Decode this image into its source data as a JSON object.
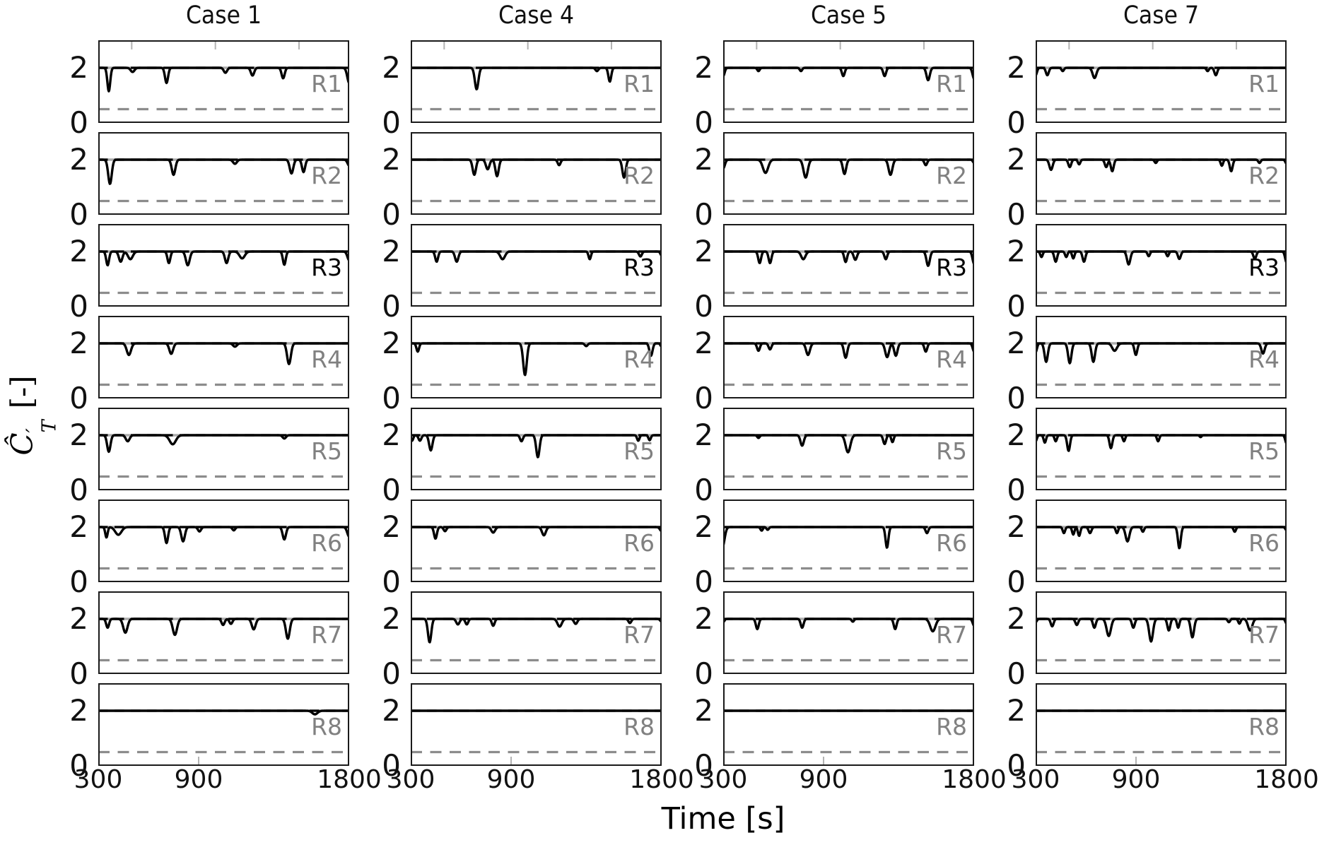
{
  "figure": {
    "xlabel": "Time [s]",
    "ylabel": {
      "base": "Ĉ",
      "prime": "′",
      "subscript": "T",
      "units": "[-]"
    },
    "background": "#ffffff"
  },
  "colors": {
    "data_line": "#000000",
    "axis_border": "#1a1a1a",
    "ref_top_solid_gray": "#acacac",
    "ref_top_dashed_black": "#000000",
    "ref_half_dashed_gray": "#8c8c8c",
    "row_label_default": "#808080",
    "row_label_highlight": "#000000",
    "minor_tick": "#b3b3b3",
    "text": "#000000"
  },
  "chart_data": {
    "type": "line",
    "title": "",
    "description": "4x8 grid of time-series subplots; black curve rides baseline 2 with downward dips; dips encoded as [time_s, depth, sigma_s] so value(t) = 2 - sum(depth*exp(-((t-time)/sigma)^2))",
    "columns": [
      "Case 1",
      "Case 4",
      "Case 5",
      "Case 7"
    ],
    "rows": [
      {
        "label": "R1",
        "color": "#808080"
      },
      {
        "label": "R2",
        "color": "#808080"
      },
      {
        "label": "R3",
        "color": "#000000"
      },
      {
        "label": "R4",
        "color": "#808080"
      },
      {
        "label": "R5",
        "color": "#808080"
      },
      {
        "label": "R6",
        "color": "#808080"
      },
      {
        "label": "R7",
        "color": "#808080"
      },
      {
        "label": "R8",
        "color": "#808080"
      }
    ],
    "x_range": [
      300,
      1800
    ],
    "y_range": [
      0,
      3
    ],
    "baseline": 2.0,
    "x_tick_values": [
      300,
      900,
      1800
    ],
    "x_tick_labels": [
      "300",
      "900",
      "1800"
    ],
    "y_tick_values": [
      2,
      0
    ],
    "y_tick_labels": [
      "2",
      "0"
    ],
    "top_minor_ticks": [
      500,
      1000,
      1500
    ],
    "bottom_minor_ticks": [
      900
    ],
    "reference_lines": [
      {
        "y": 2.0,
        "style": "gray-solid-with-black-dashes"
      },
      {
        "y": 0.5,
        "style": "gray-dashed"
      }
    ],
    "dips": [
      [
        [
          [
            363,
            0.85,
            12
          ],
          [
            505,
            0.15,
            16
          ],
          [
            708,
            0.55,
            13
          ],
          [
            1060,
            0.18,
            14
          ],
          [
            1222,
            0.28,
            14
          ],
          [
            1405,
            0.38,
            13
          ],
          [
            1800,
            0.55,
            16
          ]
        ],
        [
          [
            370,
            0.88,
            15
          ],
          [
            750,
            0.55,
            15
          ],
          [
            1117,
            0.15,
            16
          ],
          [
            1455,
            0.5,
            15
          ],
          [
            1527,
            0.45,
            13
          ],
          [
            1800,
            0.22,
            14
          ]
        ],
        [
          [
            356,
            0.5,
            12
          ],
          [
            434,
            0.37,
            15
          ],
          [
            492,
            0.28,
            20
          ],
          [
            722,
            0.42,
            12
          ],
          [
            835,
            0.5,
            16
          ],
          [
            1067,
            0.42,
            14
          ],
          [
            1160,
            0.25,
            22
          ],
          [
            1412,
            0.48,
            12
          ],
          [
            1800,
            0.32,
            15
          ]
        ],
        [
          [
            483,
            0.42,
            18
          ],
          [
            736,
            0.38,
            16
          ],
          [
            1117,
            0.12,
            16
          ],
          [
            1440,
            0.75,
            16
          ]
        ],
        [
          [
            363,
            0.6,
            14
          ],
          [
            476,
            0.22,
            16
          ],
          [
            745,
            0.33,
            26
          ],
          [
            1412,
            0.12,
            14
          ]
        ],
        [
          [
            349,
            0.38,
            10
          ],
          [
            420,
            0.28,
            26
          ],
          [
            708,
            0.58,
            13
          ],
          [
            807,
            0.52,
            15
          ],
          [
            905,
            0.16,
            13
          ],
          [
            1110,
            0.12,
            12
          ],
          [
            1412,
            0.45,
            14
          ],
          [
            1800,
            0.35,
            16
          ]
        ],
        [
          [
            356,
            0.32,
            12
          ],
          [
            462,
            0.5,
            18
          ],
          [
            758,
            0.58,
            18
          ],
          [
            1046,
            0.22,
            13
          ],
          [
            1093,
            0.18,
            13
          ],
          [
            1229,
            0.38,
            16
          ],
          [
            1433,
            0.72,
            16
          ]
        ],
        [
          [
            1595,
            0.13,
            22
          ]
        ]
      ],
      [
        [
          [
            694,
            0.78,
            15
          ],
          [
            1413,
            0.12,
            12
          ],
          [
            1490,
            0.5,
            12
          ]
        ],
        [
          [
            680,
            0.55,
            14
          ],
          [
            760,
            0.35,
            15
          ],
          [
            816,
            0.6,
            14
          ],
          [
            1187,
            0.2,
            12
          ],
          [
            1575,
            0.65,
            14
          ]
        ],
        [
          [
            455,
            0.37,
            12
          ],
          [
            575,
            0.37,
            14
          ],
          [
            849,
            0.28,
            20
          ],
          [
            1370,
            0.28,
            10
          ],
          [
            1673,
            0.18,
            12
          ],
          [
            1800,
            0.15,
            10
          ]
        ],
        [
          [
            342,
            0.3,
            11
          ],
          [
            983,
            1.15,
            15
          ],
          [
            1349,
            0.1,
            12
          ],
          [
            1736,
            0.45,
            13
          ],
          [
            1800,
            0.12,
            10
          ]
        ],
        [
          [
            308,
            0.2,
            10
          ],
          [
            355,
            0.2,
            12
          ],
          [
            420,
            0.55,
            14
          ],
          [
            962,
            0.22,
            12
          ],
          [
            1060,
            0.8,
            14
          ],
          [
            1660,
            0.2,
            10
          ],
          [
            1728,
            0.18,
            10
          ]
        ],
        [
          [
            448,
            0.42,
            12
          ],
          [
            505,
            0.15,
            12
          ],
          [
            793,
            0.2,
            16
          ],
          [
            1096,
            0.3,
            16
          ],
          [
            1800,
            0.15,
            14
          ]
        ],
        [
          [
            413,
            0.85,
            14
          ],
          [
            582,
            0.2,
            14
          ],
          [
            635,
            0.2,
            12
          ],
          [
            793,
            0.25,
            12
          ],
          [
            1190,
            0.28,
            18
          ],
          [
            1286,
            0.18,
            14
          ],
          [
            1610,
            0.15,
            12
          ],
          [
            1800,
            0.1,
            12
          ]
        ],
        []
      ],
      [
        [
          [
            300,
            0.3,
            12
          ],
          [
            511,
            0.12,
            10
          ],
          [
            765,
            0.12,
            10
          ],
          [
            1018,
            0.3,
            12
          ],
          [
            1265,
            0.3,
            12
          ],
          [
            1525,
            0.45,
            14
          ],
          [
            1800,
            0.4,
            13
          ]
        ],
        [
          [
            300,
            0.32,
            14
          ],
          [
            553,
            0.48,
            22
          ],
          [
            793,
            0.65,
            18
          ],
          [
            1025,
            0.52,
            14
          ],
          [
            1300,
            0.55,
            16
          ],
          [
            1511,
            0.2,
            12
          ],
          [
            1800,
            0.12,
            10
          ]
        ],
        [
          [
            518,
            0.42,
            12
          ],
          [
            580,
            0.42,
            12
          ],
          [
            779,
            0.28,
            18
          ],
          [
            1032,
            0.38,
            12
          ],
          [
            1090,
            0.3,
            14
          ],
          [
            1272,
            0.28,
            12
          ],
          [
            1525,
            0.52,
            14
          ],
          [
            1800,
            0.45,
            13
          ]
        ],
        [
          [
            511,
            0.27,
            12
          ],
          [
            580,
            0.22,
            12
          ],
          [
            807,
            0.42,
            16
          ],
          [
            1032,
            0.52,
            14
          ],
          [
            1280,
            0.5,
            16
          ],
          [
            1332,
            0.45,
            14
          ],
          [
            1511,
            0.3,
            12
          ],
          [
            1800,
            0.3,
            12
          ]
        ],
        [
          [
            511,
            0.1,
            10
          ],
          [
            772,
            0.38,
            14
          ],
          [
            1046,
            0.62,
            20
          ],
          [
            1265,
            0.32,
            12
          ],
          [
            1312,
            0.25,
            10
          ]
        ],
        [
          [
            295,
            0.75,
            18
          ],
          [
            530,
            0.13,
            10
          ],
          [
            566,
            0.1,
            10
          ],
          [
            1279,
            0.75,
            12
          ],
          [
            1518,
            0.22,
            12
          ]
        ],
        [
          [
            300,
            0.12,
            10
          ],
          [
            504,
            0.37,
            12
          ],
          [
            772,
            0.32,
            12
          ],
          [
            1075,
            0.1,
            10
          ],
          [
            1328,
            0.37,
            12
          ],
          [
            1553,
            0.45,
            22
          ],
          [
            1800,
            0.25,
            12
          ]
        ],
        []
      ],
      [
        [
          [
            300,
            0.27,
            11
          ],
          [
            370,
            0.27,
            12
          ],
          [
            462,
            0.12,
            10
          ],
          [
            652,
            0.37,
            16
          ],
          [
            1328,
            0.12,
            10
          ],
          [
            1377,
            0.27,
            12
          ]
        ],
        [
          [
            392,
            0.37,
            14
          ],
          [
            504,
            0.27,
            12
          ],
          [
            560,
            0.17,
            10
          ],
          [
            722,
            0.27,
            12
          ],
          [
            758,
            0.42,
            12
          ],
          [
            1018,
            0.12,
            10
          ],
          [
            1413,
            0.22,
            10
          ],
          [
            1469,
            0.42,
            12
          ],
          [
            1638,
            0.12,
            10
          ],
          [
            1800,
            0.15,
            10
          ]
        ],
        [
          [
            335,
            0.2,
            10
          ],
          [
            420,
            0.37,
            12
          ],
          [
            483,
            0.2,
            10
          ],
          [
            525,
            0.25,
            10
          ],
          [
            589,
            0.37,
            12
          ],
          [
            856,
            0.47,
            14
          ],
          [
            976,
            0.17,
            10
          ],
          [
            1089,
            0.17,
            10
          ],
          [
            1159,
            0.27,
            12
          ],
          [
            1610,
            0.27,
            12
          ],
          [
            1800,
            0.4,
            12
          ]
        ],
        [
          [
            300,
            0.32,
            11
          ],
          [
            363,
            0.67,
            14
          ],
          [
            504,
            0.72,
            14
          ],
          [
            645,
            0.67,
            14
          ],
          [
            772,
            0.27,
            20
          ],
          [
            899,
            0.42,
            12
          ],
          [
            1659,
            0.37,
            14
          ]
        ],
        [
          [
            300,
            0.22,
            10
          ],
          [
            355,
            0.27,
            10
          ],
          [
            420,
            0.22,
            10
          ],
          [
            497,
            0.57,
            12
          ],
          [
            750,
            0.47,
            12
          ],
          [
            828,
            0.22,
            10
          ],
          [
            1032,
            0.22,
            10
          ],
          [
            1286,
            0.07,
            8
          ],
          [
            1800,
            0.3,
            11
          ]
        ],
        [
          [
            469,
            0.22,
            10
          ],
          [
            525,
            0.27,
            10
          ],
          [
            560,
            0.32,
            10
          ],
          [
            625,
            0.22,
            12
          ],
          [
            786,
            0.22,
            10
          ],
          [
            849,
            0.52,
            16
          ],
          [
            941,
            0.17,
            10
          ],
          [
            1159,
            0.77,
            12
          ],
          [
            1490,
            0.17,
            10
          ],
          [
            1800,
            0.12,
            10
          ]
        ],
        [
          [
            300,
            0.12,
            10
          ],
          [
            399,
            0.27,
            12
          ],
          [
            546,
            0.22,
            12
          ],
          [
            651,
            0.32,
            12
          ],
          [
            737,
            0.62,
            18
          ],
          [
            884,
            0.32,
            12
          ],
          [
            990,
            0.82,
            16
          ],
          [
            1096,
            0.42,
            12
          ],
          [
            1152,
            0.32,
            10
          ],
          [
            1237,
            0.67,
            14
          ],
          [
            1455,
            0.12,
            10
          ],
          [
            1518,
            0.17,
            10
          ],
          [
            1582,
            0.42,
            18
          ],
          [
            1800,
            0.17,
            10
          ]
        ],
        []
      ]
    ]
  }
}
